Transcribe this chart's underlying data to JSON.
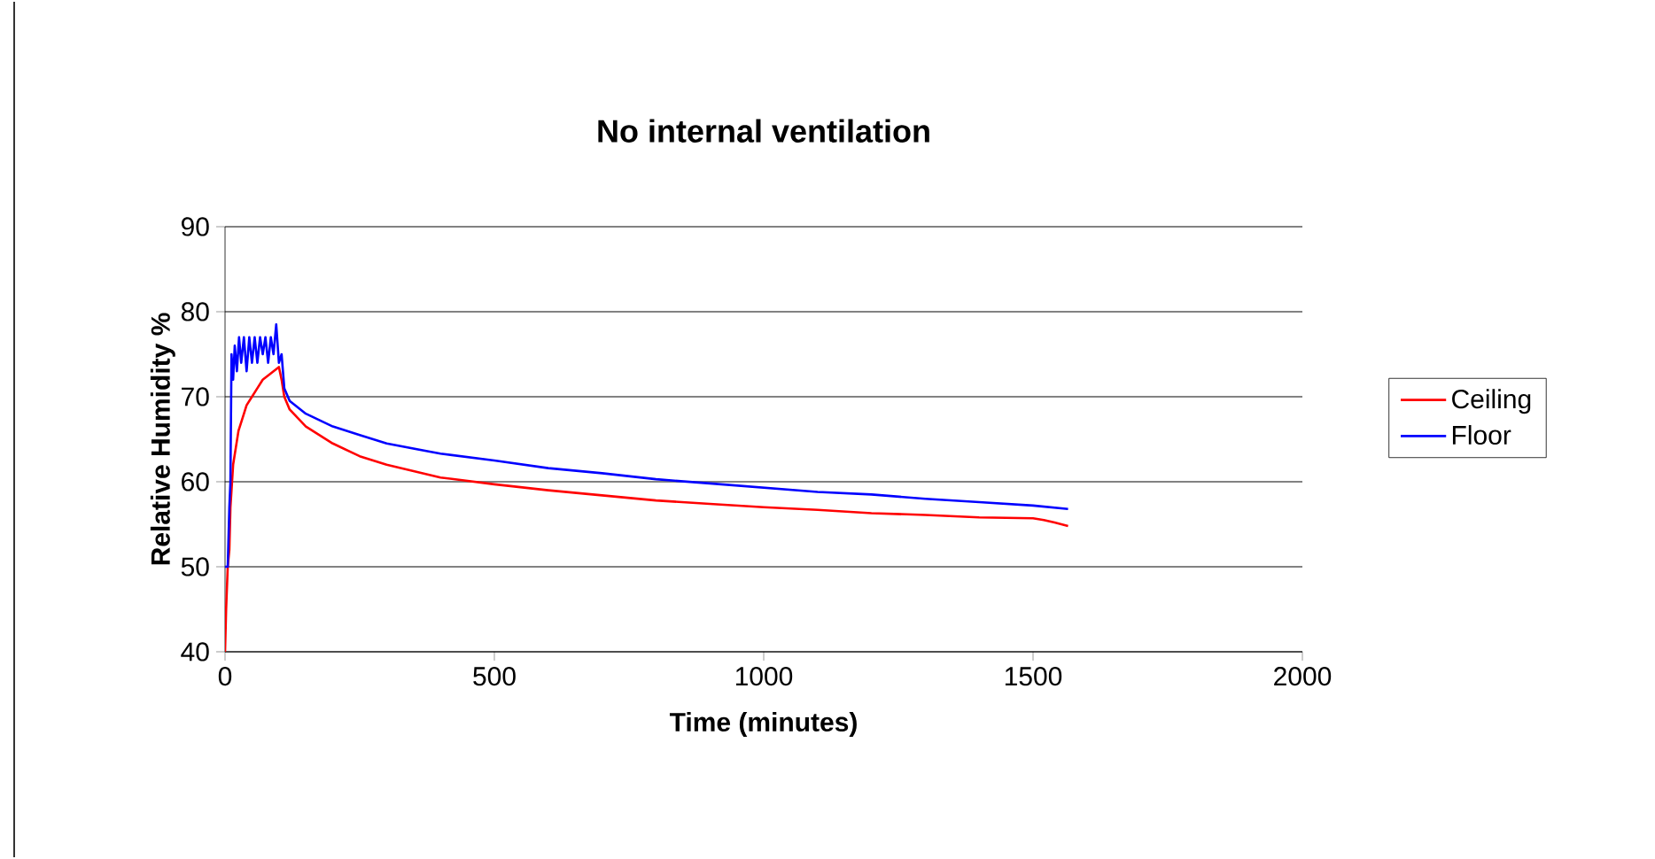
{
  "chart_data": {
    "type": "line",
    "title": "No internal ventilation",
    "xlabel": "Time (minutes)",
    "ylabel": "Relative Humidity %",
    "xlim": [
      0,
      2000
    ],
    "xticks": [
      0,
      500,
      1000,
      1500,
      2000
    ],
    "ylim": [
      40,
      90
    ],
    "yticks": [
      40,
      50,
      60,
      70,
      80,
      90
    ],
    "grid": "y",
    "legend": "right",
    "series": [
      {
        "name": "Ceiling",
        "color": "#ff0000",
        "x": [
          0,
          2,
          5,
          8,
          10,
          15,
          20,
          25,
          30,
          40,
          50,
          60,
          70,
          80,
          90,
          100,
          105,
          110,
          120,
          150,
          200,
          250,
          300,
          400,
          500,
          600,
          700,
          800,
          900,
          1000,
          1100,
          1200,
          1300,
          1400,
          1500,
          1520,
          1540,
          1565
        ],
        "values": [
          40,
          45,
          50,
          52,
          57,
          62,
          64,
          66,
          67,
          69,
          70,
          71,
          72,
          72.5,
          73,
          73.5,
          72,
          70,
          68.5,
          66.5,
          64.5,
          63,
          62,
          60.5,
          59.7,
          59,
          58.4,
          57.8,
          57.4,
          57,
          56.7,
          56.3,
          56.1,
          55.8,
          55.7,
          55.5,
          55.2,
          54.8
        ]
      },
      {
        "name": "Floor",
        "color": "#0000ff",
        "x": [
          0,
          5,
          8,
          10,
          12,
          15,
          18,
          22,
          26,
          30,
          35,
          40,
          45,
          50,
          55,
          60,
          65,
          70,
          75,
          80,
          85,
          90,
          95,
          100,
          105,
          110,
          120,
          150,
          200,
          250,
          300,
          400,
          500,
          600,
          700,
          800,
          900,
          1000,
          1100,
          1200,
          1300,
          1400,
          1500,
          1565
        ],
        "values": [
          50,
          50,
          57,
          60,
          75,
          72,
          76,
          73,
          77,
          74,
          77,
          73,
          77,
          74,
          77,
          74,
          77,
          75,
          77,
          74,
          77,
          75,
          78.5,
          74,
          75,
          71,
          69.5,
          68,
          66.5,
          65.5,
          64.5,
          63.3,
          62.5,
          61.6,
          61,
          60.3,
          59.8,
          59.3,
          58.8,
          58.5,
          58,
          57.6,
          57.2,
          56.8
        ]
      }
    ]
  }
}
